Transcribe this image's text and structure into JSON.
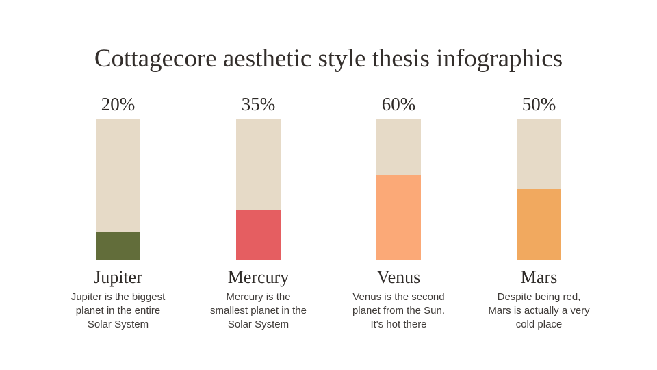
{
  "page": {
    "title": "Cottagecore aesthetic style thesis infographics",
    "background_color": "#ffffff"
  },
  "colors": {
    "track": "#e6dac7",
    "title_text": "#332e2b",
    "heading_text": "#2f2b28",
    "body_text": "#3f3b38"
  },
  "chart_data": {
    "type": "bar",
    "title": "Cottagecore aesthetic style thesis infographics",
    "categories": [
      "Jupiter",
      "Mercury",
      "Venus",
      "Mars"
    ],
    "values": [
      20,
      35,
      60,
      50
    ],
    "unit": "%",
    "ylim": [
      0,
      100
    ],
    "xlabel": "",
    "ylabel": "",
    "grid": false,
    "legend": "none",
    "orientation": "vertical",
    "bar_style": "filled portion at bottom of beige track",
    "annotations": [
      "Jupiter is the biggest planet in the entire Solar System",
      "Mercury is the smallest planet in the Solar System",
      "Venus is the second planet from the Sun. It's hot there",
      "Despite being red, Mars is actually a very cold place"
    ]
  },
  "bars": [
    {
      "percent_label": "20%",
      "value": 20,
      "name": "Jupiter",
      "description": "Jupiter is the biggest\nplanet in the entire\nSolar System",
      "fill_color": "#626d3a"
    },
    {
      "percent_label": "35%",
      "value": 35,
      "name": "Mercury",
      "description": "Mercury is the\nsmallest planet in the\nSolar System",
      "fill_color": "#e55e61"
    },
    {
      "percent_label": "60%",
      "value": 60,
      "name": "Venus",
      "description": "Venus is the second\nplanet from the Sun.\nIt's hot there",
      "fill_color": "#fba977"
    },
    {
      "percent_label": "50%",
      "value": 50,
      "name": "Mars",
      "description": "Despite being red,\nMars is actually a very\ncold place",
      "fill_color": "#f1a95f"
    }
  ]
}
